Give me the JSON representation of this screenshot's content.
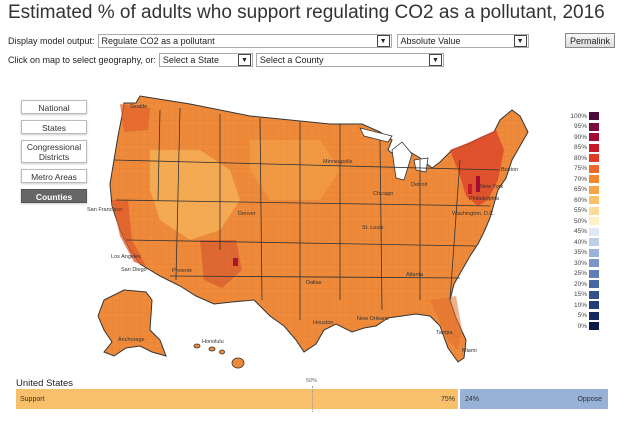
{
  "title": "Estimated % of adults who support regulating CO2 as a pollutant, 2016",
  "controls": {
    "output_label": "Display model output:",
    "output_value": "Regulate CO2 as a pollutant",
    "value_type": "Absolute Value",
    "permalink_label": "Permalink",
    "click_label": "Click on map to select geography, or:",
    "state_placeholder": "Select a State",
    "county_placeholder": "Select a County"
  },
  "geography_buttons": {
    "national": "National",
    "states": "States",
    "congressional": "Congressional Districts",
    "metro": "Metro Areas",
    "counties": "Counties",
    "active": "Counties"
  },
  "legend": {
    "labels": [
      "100%",
      "95%",
      "90%",
      "85%",
      "80%",
      "75%",
      "70%",
      "65%",
      "60%",
      "55%",
      "50%",
      "45%",
      "40%",
      "35%",
      "30%",
      "25%",
      "20%",
      "15%",
      "10%",
      "5%",
      "0%"
    ],
    "colors": [
      "#4a0a3a",
      "#7a0a3c",
      "#a30d2f",
      "#c61a2a",
      "#e03a26",
      "#ee6a2c",
      "#f3892f",
      "#f6a545",
      "#f8c26b",
      "#fadc97",
      "#fdf0c6",
      "#dfe8f3",
      "#bccfe6",
      "#9bb3d8",
      "#7c97c7",
      "#5f7db6",
      "#4766a3",
      "#33508f",
      "#223d78",
      "#152a60",
      "#0b1a45"
    ]
  },
  "cities": {
    "seattle": "Seattle",
    "san_francisco": "San Francisco",
    "los_angeles": "Los Angeles",
    "san_diego": "San Diego",
    "phoenix": "Phoenix",
    "denver": "Denver",
    "minneapolis": "Minneapolis",
    "chicago": "Chicago",
    "detroit": "Detroit",
    "st_louis": "St. Louis",
    "dallas": "Dallas",
    "houston": "Houston",
    "new_orleans": "New Orleans",
    "atlanta": "Atlanta",
    "tampa": "Tampa",
    "miami": "Miami",
    "washington": "Washington, D.C.",
    "new_york": "New York",
    "philadelphia": "Philadelphia",
    "boston": "Boston",
    "anchorage": "Anchorage",
    "honolulu": "Honolulu"
  },
  "summary": {
    "region": "United States",
    "midpoint": "50%",
    "support_label": "Support",
    "support_pct": "75%",
    "support_value": 75,
    "oppose_pct": "24%",
    "oppose_label": "Oppose",
    "oppose_value": 24
  }
}
